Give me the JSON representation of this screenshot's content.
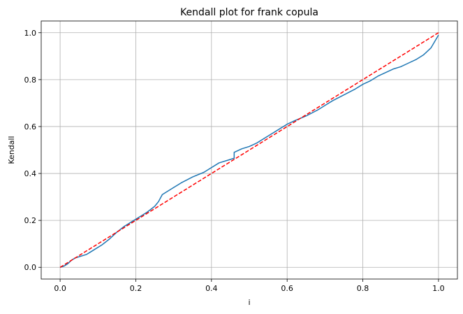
{
  "chart_data": {
    "type": "line",
    "title": "Kendall plot for frank copula",
    "xlabel": "i",
    "ylabel": "Kendall",
    "xlim": [
      -0.05,
      1.05
    ],
    "ylim": [
      -0.05,
      1.05
    ],
    "xticks": [
      0.0,
      0.2,
      0.4,
      0.6,
      0.8,
      1.0
    ],
    "yticks": [
      0.0,
      0.2,
      0.4,
      0.6,
      0.8,
      1.0
    ],
    "xtick_labels": [
      "0.0",
      "0.2",
      "0.4",
      "0.6",
      "0.8",
      "1.0"
    ],
    "ytick_labels": [
      "0.0",
      "0.2",
      "0.4",
      "0.6",
      "0.8",
      "1.0"
    ],
    "grid": true,
    "series": [
      {
        "style": "solid",
        "color": "#1f77b4",
        "x": [
          0.0,
          0.01,
          0.02,
          0.03,
          0.04,
          0.05,
          0.07,
          0.09,
          0.11,
          0.13,
          0.15,
          0.17,
          0.19,
          0.21,
          0.23,
          0.25,
          0.26,
          0.27,
          0.28,
          0.3,
          0.32,
          0.35,
          0.38,
          0.4,
          0.42,
          0.44,
          0.46,
          0.46,
          0.48,
          0.5,
          0.52,
          0.55,
          0.58,
          0.6,
          0.62,
          0.65,
          0.68,
          0.7,
          0.72,
          0.75,
          0.78,
          0.8,
          0.82,
          0.84,
          0.86,
          0.88,
          0.9,
          0.92,
          0.94,
          0.96,
          0.98,
          1.0
        ],
        "y": [
          0.0,
          0.005,
          0.015,
          0.03,
          0.04,
          0.045,
          0.055,
          0.075,
          0.095,
          0.12,
          0.15,
          0.175,
          0.195,
          0.215,
          0.235,
          0.26,
          0.28,
          0.31,
          0.32,
          0.34,
          0.36,
          0.385,
          0.405,
          0.425,
          0.445,
          0.455,
          0.465,
          0.49,
          0.505,
          0.515,
          0.53,
          0.56,
          0.59,
          0.61,
          0.625,
          0.645,
          0.67,
          0.69,
          0.71,
          0.735,
          0.76,
          0.78,
          0.795,
          0.815,
          0.83,
          0.845,
          0.855,
          0.87,
          0.885,
          0.905,
          0.935,
          0.99
        ]
      },
      {
        "style": "dashed",
        "color": "#ff0000",
        "x": [
          0.0,
          1.0
        ],
        "y": [
          0.0,
          1.0
        ]
      }
    ]
  }
}
